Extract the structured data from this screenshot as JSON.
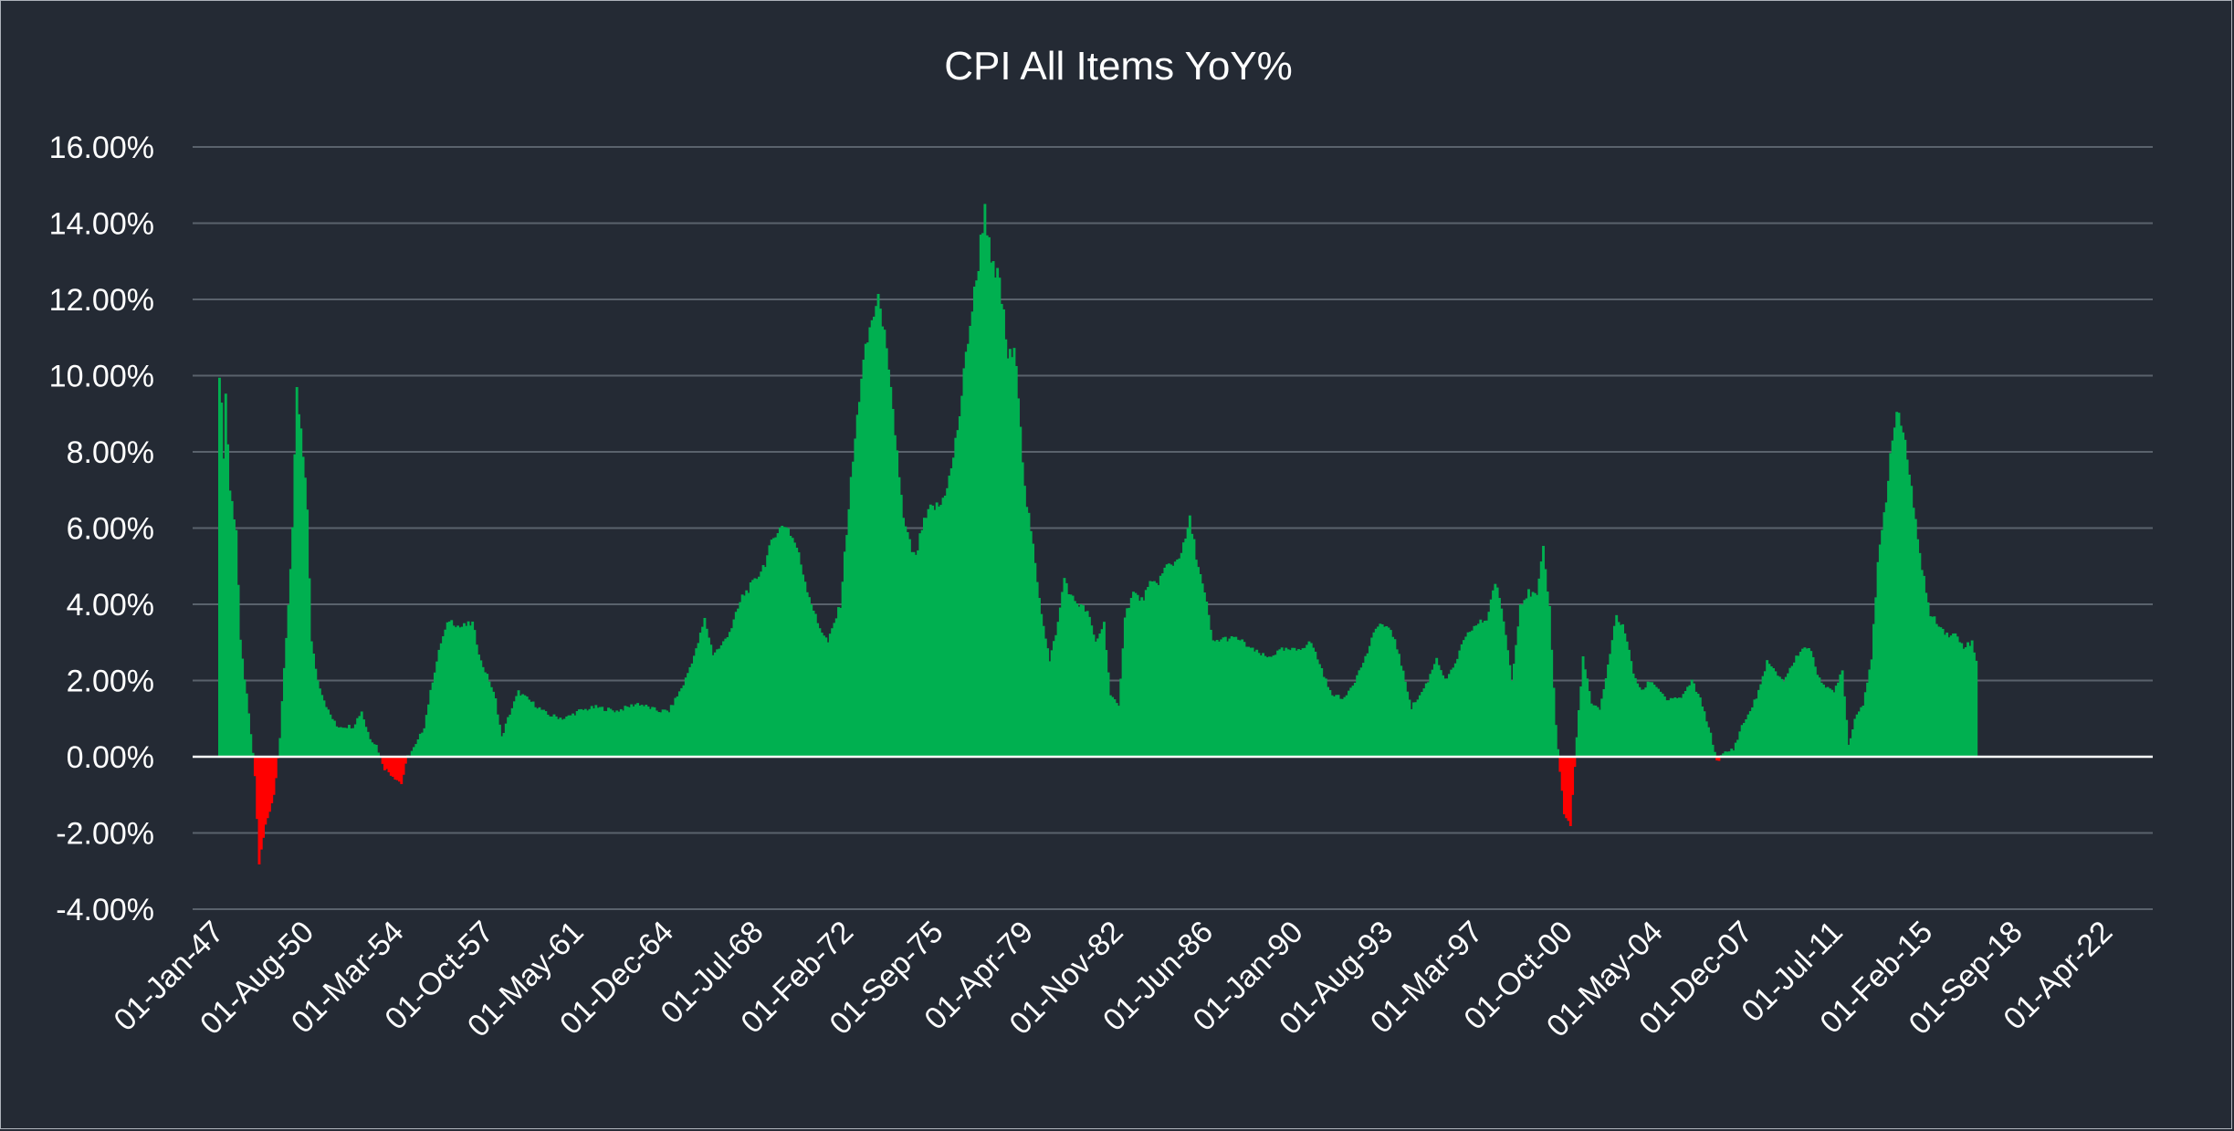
{
  "chart_data": {
    "type": "bar",
    "title": "CPI All Items YoY%",
    "xlabel": "",
    "ylabel": "",
    "ylim": [
      -4,
      16
    ],
    "y_ticks": [
      16,
      14,
      12,
      10,
      8,
      6,
      4,
      2,
      0,
      -2,
      -4
    ],
    "y_tick_labels": [
      "16.00%",
      "14.00%",
      "12.00%",
      "10.00%",
      "8.00%",
      "6.00%",
      "4.00%",
      "2.00%",
      "0.00%",
      "-2.00%",
      "-4.00%"
    ],
    "x_start": "01-Jan-47",
    "x_tick_labels": [
      "01-Jan-47",
      "01-Aug-50",
      "01-Mar-54",
      "01-Oct-57",
      "01-May-61",
      "01-Dec-64",
      "01-Jul-68",
      "01-Feb-72",
      "01-Sep-75",
      "01-Apr-79",
      "01-Nov-82",
      "01-Jun-86",
      "01-Jan-90",
      "01-Aug-93",
      "01-Mar-97",
      "01-Oct-00",
      "01-May-04",
      "01-Dec-07",
      "01-Jul-11",
      "01-Feb-15",
      "01-Sep-18",
      "01-Apr-22"
    ],
    "x_tick_month_index": [
      0,
      43,
      86,
      129,
      172,
      215,
      258,
      301,
      344,
      387,
      430,
      473,
      516,
      559,
      602,
      645,
      688,
      731,
      774,
      817,
      860,
      903
    ],
    "total_months": 925,
    "positive_color": "#00b050",
    "negative_color": "#ff0000",
    "series_keyframes": [
      [
        0,
        10.2
      ],
      [
        2,
        8.0
      ],
      [
        3,
        9.5
      ],
      [
        5,
        7.0
      ],
      [
        8,
        6.0
      ],
      [
        10,
        3.0
      ],
      [
        13,
        1.6
      ],
      [
        15,
        0.6
      ],
      [
        17,
        -0.5
      ],
      [
        19,
        -2.8
      ],
      [
        22,
        -1.8
      ],
      [
        26,
        -1.0
      ],
      [
        29,
        0.5
      ],
      [
        31,
        2.3
      ],
      [
        33,
        4.0
      ],
      [
        35,
        6.0
      ],
      [
        37,
        9.5
      ],
      [
        39,
        8.5
      ],
      [
        42,
        6.5
      ],
      [
        44,
        3.0
      ],
      [
        47,
        2.0
      ],
      [
        50,
        1.5
      ],
      [
        52,
        1.2
      ],
      [
        56,
        0.8
      ],
      [
        60,
        0.8
      ],
      [
        64,
        0.8
      ],
      [
        68,
        1.2
      ],
      [
        70,
        0.8
      ],
      [
        72,
        0.5
      ],
      [
        75,
        0.3
      ],
      [
        79,
        -0.3
      ],
      [
        83,
        -0.5
      ],
      [
        87,
        -0.7
      ],
      [
        90,
        0.0
      ],
      [
        94,
        0.3
      ],
      [
        98,
        0.8
      ],
      [
        102,
        2.0
      ],
      [
        106,
        3.0
      ],
      [
        110,
        3.6
      ],
      [
        115,
        3.4
      ],
      [
        121,
        3.5
      ],
      [
        125,
        2.5
      ],
      [
        129,
        2.0
      ],
      [
        132,
        1.5
      ],
      [
        135,
        0.5
      ],
      [
        138,
        1.0
      ],
      [
        143,
        1.7
      ],
      [
        150,
        1.4
      ],
      [
        157,
        1.1
      ],
      [
        165,
        1.0
      ],
      [
        172,
        1.2
      ],
      [
        180,
        1.3
      ],
      [
        190,
        1.2
      ],
      [
        200,
        1.4
      ],
      [
        210,
        1.2
      ],
      [
        215,
        1.2
      ],
      [
        222,
        1.9
      ],
      [
        228,
        2.8
      ],
      [
        232,
        3.6
      ],
      [
        236,
        2.7
      ],
      [
        240,
        2.9
      ],
      [
        245,
        3.4
      ],
      [
        250,
        4.2
      ],
      [
        256,
        4.6
      ],
      [
        261,
        5.1
      ],
      [
        266,
        5.9
      ],
      [
        271,
        6.1
      ],
      [
        276,
        5.5
      ],
      [
        281,
        4.4
      ],
      [
        286,
        3.5
      ],
      [
        291,
        3.0
      ],
      [
        297,
        4.0
      ],
      [
        302,
        7.2
      ],
      [
        307,
        10.0
      ],
      [
        312,
        11.5
      ],
      [
        316,
        12.0
      ],
      [
        320,
        10.0
      ],
      [
        324,
        8.0
      ],
      [
        327,
        6.2
      ],
      [
        331,
        5.4
      ],
      [
        333,
        5.2
      ],
      [
        336,
        6.0
      ],
      [
        340,
        6.5
      ],
      [
        345,
        6.6
      ],
      [
        350,
        7.5
      ],
      [
        354,
        9.0
      ],
      [
        358,
        11.0
      ],
      [
        362,
        12.5
      ],
      [
        364,
        13.5
      ],
      [
        366,
        14.5
      ],
      [
        369,
        12.8
      ],
      [
        373,
        12.5
      ],
      [
        377,
        10.5
      ],
      [
        381,
        10.5
      ],
      [
        385,
        7.0
      ],
      [
        389,
        5.5
      ],
      [
        393,
        3.8
      ],
      [
        397,
        2.5
      ],
      [
        401,
        3.5
      ],
      [
        404,
        4.7
      ],
      [
        407,
        4.2
      ],
      [
        411,
        4.0
      ],
      [
        415,
        3.8
      ],
      [
        419,
        3.0
      ],
      [
        423,
        3.5
      ],
      [
        426,
        1.6
      ],
      [
        430,
        1.3
      ],
      [
        433,
        3.7
      ],
      [
        437,
        4.3
      ],
      [
        441,
        4.1
      ],
      [
        445,
        4.5
      ],
      [
        449,
        4.6
      ],
      [
        453,
        5.0
      ],
      [
        457,
        5.1
      ],
      [
        461,
        5.5
      ],
      [
        464,
        6.2
      ],
      [
        468,
        5.0
      ],
      [
        472,
        4.0
      ],
      [
        475,
        3.0
      ],
      [
        480,
        3.1
      ],
      [
        487,
        3.1
      ],
      [
        494,
        2.8
      ],
      [
        501,
        2.6
      ],
      [
        508,
        2.8
      ],
      [
        515,
        2.8
      ],
      [
        522,
        3.0
      ],
      [
        527,
        2.3
      ],
      [
        531,
        1.7
      ],
      [
        537,
        1.5
      ],
      [
        543,
        2.0
      ],
      [
        548,
        2.6
      ],
      [
        554,
        3.5
      ],
      [
        558,
        3.4
      ],
      [
        562,
        3.1
      ],
      [
        566,
        2.2
      ],
      [
        570,
        1.3
      ],
      [
        574,
        1.6
      ],
      [
        578,
        2.0
      ],
      [
        582,
        2.6
      ],
      [
        586,
        2.0
      ],
      [
        590,
        2.3
      ],
      [
        594,
        2.9
      ],
      [
        598,
        3.3
      ],
      [
        602,
        3.5
      ],
      [
        606,
        3.6
      ],
      [
        610,
        4.6
      ],
      [
        614,
        3.6
      ],
      [
        618,
        2.0
      ],
      [
        622,
        4.0
      ],
      [
        626,
        4.3
      ],
      [
        630,
        4.2
      ],
      [
        633,
        5.4
      ],
      [
        636,
        3.9
      ],
      [
        639,
        0.8
      ],
      [
        643,
        -1.5
      ],
      [
        646,
        -1.8
      ],
      [
        649,
        0.5
      ],
      [
        652,
        2.6
      ],
      [
        656,
        1.4
      ],
      [
        660,
        1.2
      ],
      [
        664,
        2.4
      ],
      [
        668,
        3.7
      ],
      [
        672,
        3.3
      ],
      [
        676,
        2.2
      ],
      [
        680,
        1.7
      ],
      [
        684,
        2.0
      ],
      [
        688,
        1.8
      ],
      [
        692,
        1.5
      ],
      [
        696,
        1.5
      ],
      [
        700,
        1.6
      ],
      [
        704,
        2.0
      ],
      [
        708,
        1.5
      ],
      [
        712,
        0.8
      ],
      [
        716,
        -0.1
      ],
      [
        720,
        0.1
      ],
      [
        724,
        0.2
      ],
      [
        728,
        0.8
      ],
      [
        732,
        1.2
      ],
      [
        736,
        1.7
      ],
      [
        740,
        2.5
      ],
      [
        744,
        2.2
      ],
      [
        748,
        2.0
      ],
      [
        752,
        2.4
      ],
      [
        756,
        2.8
      ],
      [
        760,
        2.9
      ],
      [
        764,
        2.2
      ],
      [
        768,
        1.8
      ],
      [
        772,
        1.7
      ],
      [
        776,
        2.3
      ],
      [
        779,
        0.3
      ],
      [
        782,
        1.0
      ],
      [
        786,
        1.4
      ],
      [
        790,
        2.6
      ],
      [
        793,
        5.0
      ],
      [
        797,
        6.8
      ],
      [
        800,
        8.5
      ],
      [
        803,
        9.0
      ],
      [
        806,
        8.3
      ],
      [
        810,
        6.5
      ],
      [
        814,
        5.0
      ],
      [
        818,
        3.7
      ],
      [
        822,
        3.5
      ],
      [
        826,
        3.2
      ],
      [
        830,
        3.2
      ],
      [
        834,
        2.9
      ],
      [
        838,
        3.0
      ],
      [
        840,
        2.5
      ]
    ]
  }
}
